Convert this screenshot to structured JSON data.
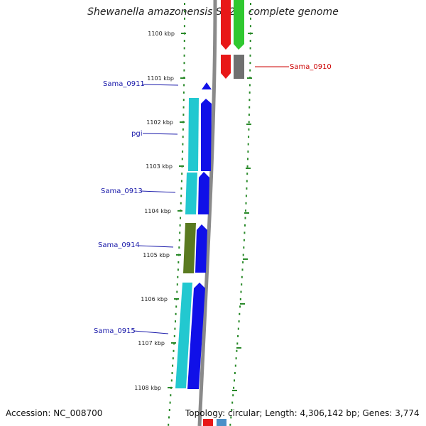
{
  "title": "Shewanella amazonensis SB2B, complete genome",
  "footer": {
    "accession": "Accession: NC_008700",
    "topology": "Topology: circular; Length: 4,306,142 bp; Genes: 3,774"
  },
  "colors": {
    "backbone": "#8a8a8a",
    "ticks": "#2a8a2a",
    "left_label": "#1a1aaa",
    "right_label": "#cc0000",
    "cds": "#1010e8",
    "gene_cyan": "#22c8d0",
    "gene_olive": "#5a7a20",
    "gene_red": "#e81818",
    "gene_green": "#30c830",
    "gene_gray": "#707070"
  },
  "kbp_labels": [
    "1100 kbp",
    "1101 kbp",
    "1102 kbp",
    "1103 kbp",
    "1104 kbp",
    "1105 kbp",
    "1106 kbp",
    "1107 kbp",
    "1108 kbp"
  ],
  "left_genes": [
    "Sama_0911",
    "pgi",
    "Sama_0913",
    "Sama_0914",
    "Sama_0915"
  ],
  "right_genes": [
    "Sama_0910"
  ]
}
